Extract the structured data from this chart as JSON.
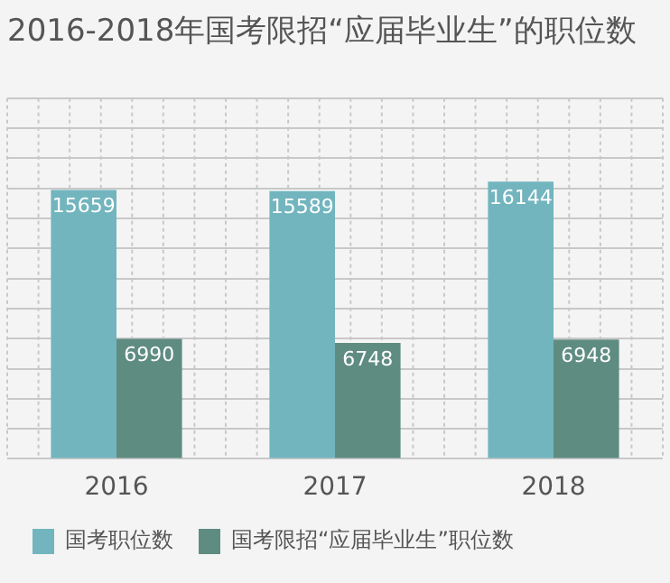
{
  "chart_data": {
    "type": "bar",
    "title": "2016-2018年国考限招“应届毕业生”的职位数",
    "categories": [
      "2016",
      "2017",
      "2018"
    ],
    "series": [
      {
        "name": "国考职位数",
        "color": "#72b5be",
        "values": [
          15659,
          15589,
          16144
        ]
      },
      {
        "name": "国考限招“应届毕业生”职位数",
        "color": "#5f8c81",
        "values": [
          6990,
          6748,
          6948
        ]
      }
    ],
    "ylim": [
      0,
      21000
    ],
    "yticks": [
      {
        "value": 0,
        "label": null
      },
      {
        "value": 1750,
        "label": null
      },
      {
        "value": 3500,
        "label": null
      },
      {
        "value": 5250,
        "label": null
      },
      {
        "value": 7000,
        "label": null
      },
      {
        "value": 8750,
        "label": null
      },
      {
        "value": 10500,
        "label": null
      },
      {
        "value": 12250,
        "label": null
      },
      {
        "value": 14000,
        "label": null
      },
      {
        "value": 15750,
        "label": null
      },
      {
        "value": 17500,
        "label": null
      },
      {
        "value": 19250,
        "label": null
      },
      {
        "value": 21000,
        "label": null
      }
    ],
    "tick_labels": "x",
    "grid": true,
    "legend": "bottom",
    "data_labels": true
  }
}
